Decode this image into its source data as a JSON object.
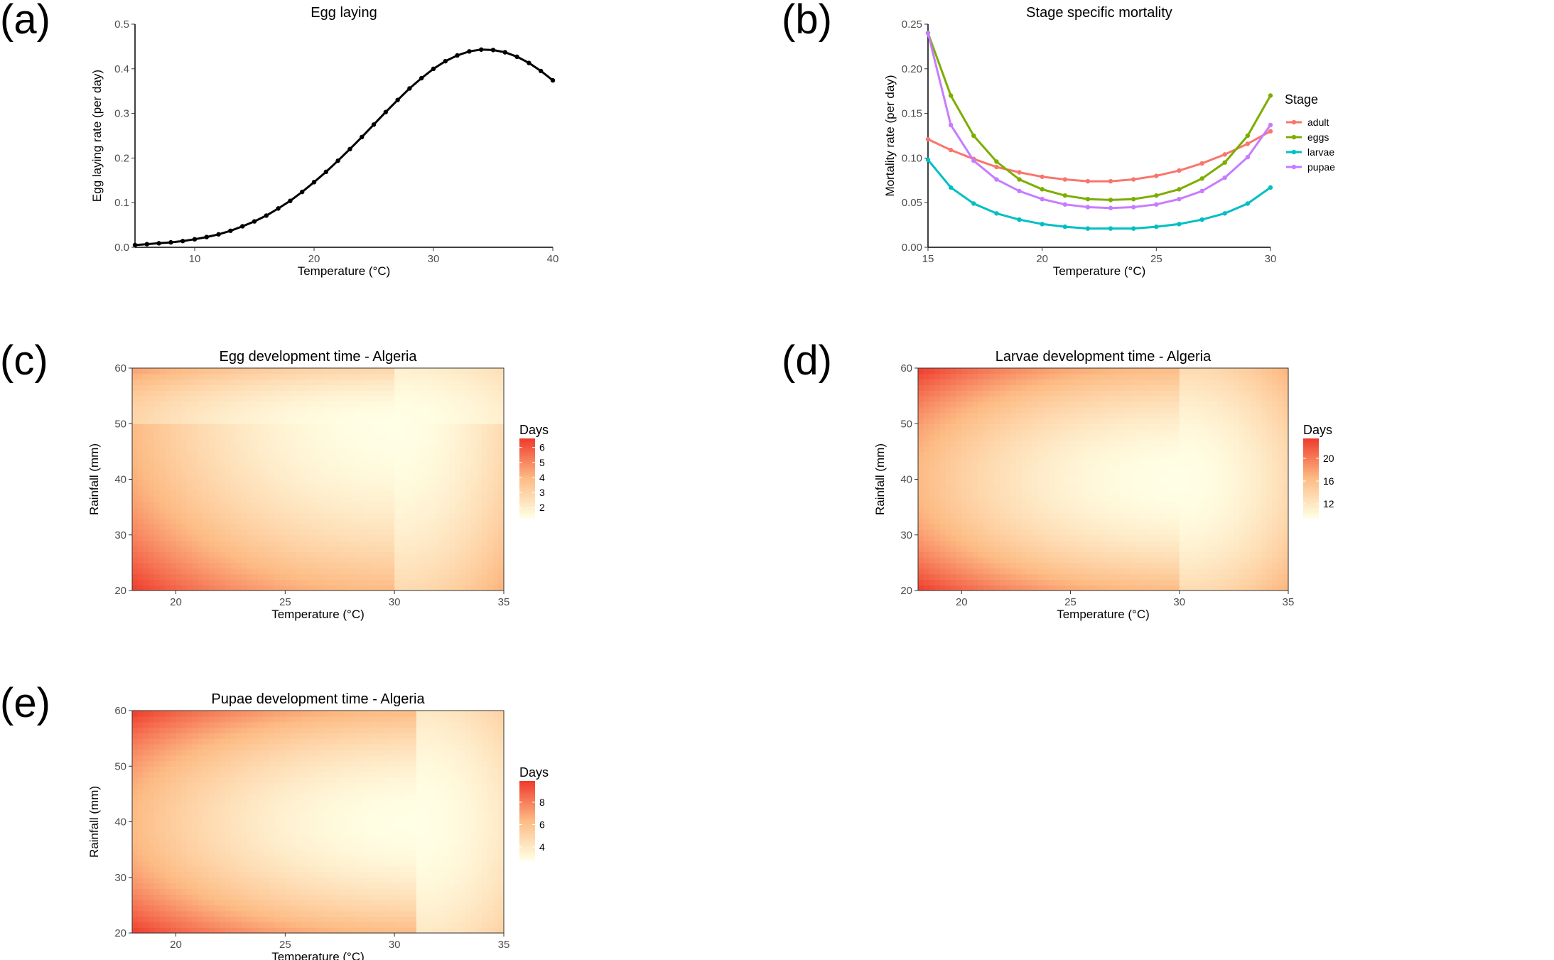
{
  "panel_labels": [
    "(a)",
    "(b)",
    "(c)",
    "(d)",
    "(e)"
  ],
  "chart_data": [
    {
      "id": "a",
      "type": "line",
      "title": "Egg laying",
      "xlabel": "Temperature (°C)",
      "ylabel": "Egg laying rate (per day)",
      "xlim": [
        5,
        40
      ],
      "ylim": [
        0,
        0.5
      ],
      "xticks": [
        10,
        20,
        30,
        40
      ],
      "yticks": [
        0.0,
        0.1,
        0.2,
        0.3,
        0.4,
        0.5
      ],
      "ytick_labels": [
        "0.0",
        "0.1",
        "0.2",
        "0.3",
        "0.4",
        "0.5"
      ],
      "color": "#000000",
      "series": [
        {
          "x": [
            5,
            6,
            7,
            8,
            9,
            10,
            11,
            12,
            13,
            14,
            15,
            16,
            17,
            18,
            19,
            20,
            21,
            22,
            23,
            24,
            25,
            26,
            27,
            28,
            29,
            30,
            31,
            32,
            33,
            34,
            35,
            36,
            37,
            38,
            39,
            40
          ],
          "y": [
            0.005,
            0.007,
            0.009,
            0.011,
            0.014,
            0.018,
            0.023,
            0.029,
            0.037,
            0.047,
            0.058,
            0.071,
            0.087,
            0.104,
            0.124,
            0.146,
            0.169,
            0.194,
            0.22,
            0.247,
            0.275,
            0.303,
            0.33,
            0.356,
            0.379,
            0.4,
            0.417,
            0.43,
            0.439,
            0.443,
            0.442,
            0.437,
            0.427,
            0.413,
            0.395,
            0.374
          ]
        }
      ]
    },
    {
      "id": "b",
      "type": "line",
      "title": "Stage specific mortality",
      "xlabel": "Temperature (°C)",
      "ylabel": "Mortality rate (per day)",
      "xlim": [
        15,
        30
      ],
      "ylim": [
        0,
        0.25
      ],
      "xticks": [
        15,
        20,
        25,
        30
      ],
      "yticks": [
        0.0,
        0.05,
        0.1,
        0.15,
        0.2,
        0.25
      ],
      "ytick_labels": [
        "0.00",
        "0.05",
        "0.10",
        "0.15",
        "0.20",
        "0.25"
      ],
      "legend_title": "Stage",
      "legend_position": "right",
      "x": [
        15,
        16,
        17,
        18,
        19,
        20,
        21,
        22,
        23,
        24,
        25,
        26,
        27,
        28,
        29,
        30
      ],
      "series": [
        {
          "name": "adult",
          "color": "#F8766D",
          "values": [
            0.121,
            0.109,
            0.099,
            0.09,
            0.084,
            0.079,
            0.076,
            0.074,
            0.074,
            0.076,
            0.08,
            0.086,
            0.094,
            0.104,
            0.116,
            0.13
          ]
        },
        {
          "name": "eggs",
          "color": "#7CAE00",
          "values": [
            0.24,
            0.17,
            0.125,
            0.096,
            0.076,
            0.065,
            0.058,
            0.054,
            0.053,
            0.054,
            0.058,
            0.065,
            0.077,
            0.095,
            0.125,
            0.17
          ]
        },
        {
          "name": "larvae",
          "color": "#00BFC4",
          "values": [
            0.098,
            0.067,
            0.049,
            0.038,
            0.031,
            0.026,
            0.023,
            0.021,
            0.021,
            0.021,
            0.023,
            0.026,
            0.031,
            0.038,
            0.049,
            0.067
          ]
        },
        {
          "name": "pupae",
          "color": "#C77CFF",
          "values": [
            0.24,
            0.137,
            0.097,
            0.076,
            0.063,
            0.054,
            0.048,
            0.045,
            0.044,
            0.045,
            0.048,
            0.054,
            0.063,
            0.078,
            0.101,
            0.137
          ]
        }
      ]
    },
    {
      "id": "c",
      "type": "heatmap",
      "title": "Egg development time - Algeria",
      "xlabel": "Temperature (°C)",
      "ylabel": "Rainfall (mm)",
      "xlim": [
        18,
        35
      ],
      "ylim": [
        20,
        60
      ],
      "xticks": [
        20,
        25,
        30,
        35
      ],
      "yticks": [
        20,
        30,
        40,
        50,
        60
      ],
      "legend_title": "Days",
      "legend_ticks": [
        2,
        3,
        4,
        5,
        6
      ],
      "value_range": [
        1.3,
        6.6
      ],
      "optimum": {
        "temperature": 30,
        "rainfall": 50
      },
      "corner_values": {
        "T18_R20": 6.6,
        "T18_R60": 4.6,
        "T35_R20": 4.2,
        "T35_R60": 2.6
      },
      "color_low": "#FFFFE5",
      "color_mid": "#FDBB84",
      "color_high": "#EF3B2C"
    },
    {
      "id": "d",
      "type": "heatmap",
      "title": "Larvae development time - Algeria",
      "xlabel": "Temperature (°C)",
      "ylabel": "Rainfall (mm)",
      "xlim": [
        18,
        35
      ],
      "ylim": [
        20,
        60
      ],
      "xticks": [
        20,
        25,
        30,
        35
      ],
      "yticks": [
        20,
        30,
        40,
        50,
        60
      ],
      "legend_title": "Days",
      "legend_ticks": [
        12,
        16,
        20
      ],
      "value_range": [
        9.5,
        23.5
      ],
      "optimum": {
        "temperature": 30,
        "rainfall": 40
      },
      "corner_values": {
        "T18_R20": 23.5,
        "T18_R60": 23.5,
        "T35_R20": 17.0,
        "T35_R60": 17.0
      },
      "color_low": "#FFFFE5",
      "color_mid": "#FDBB84",
      "color_high": "#EF3B2C"
    },
    {
      "id": "e",
      "type": "heatmap",
      "title": "Pupae development time - Algeria",
      "xlabel": "Temperature (°C)",
      "ylabel": "Rainfall (mm)",
      "xlim": [
        18,
        35
      ],
      "ylim": [
        20,
        60
      ],
      "xticks": [
        20,
        25,
        30,
        35
      ],
      "yticks": [
        20,
        30,
        40,
        50,
        60
      ],
      "legend_title": "Days",
      "legend_ticks": [
        4,
        6,
        8
      ],
      "value_range": [
        2.8,
        9.9
      ],
      "optimum": {
        "temperature": 31,
        "rainfall": 40
      },
      "corner_values": {
        "T18_R20": 9.9,
        "T18_R60": 9.9,
        "T35_R20": 5.2,
        "T35_R60": 5.2
      },
      "color_low": "#FFFFE5",
      "color_mid": "#FDBB84",
      "color_high": "#EF3B2C"
    }
  ]
}
